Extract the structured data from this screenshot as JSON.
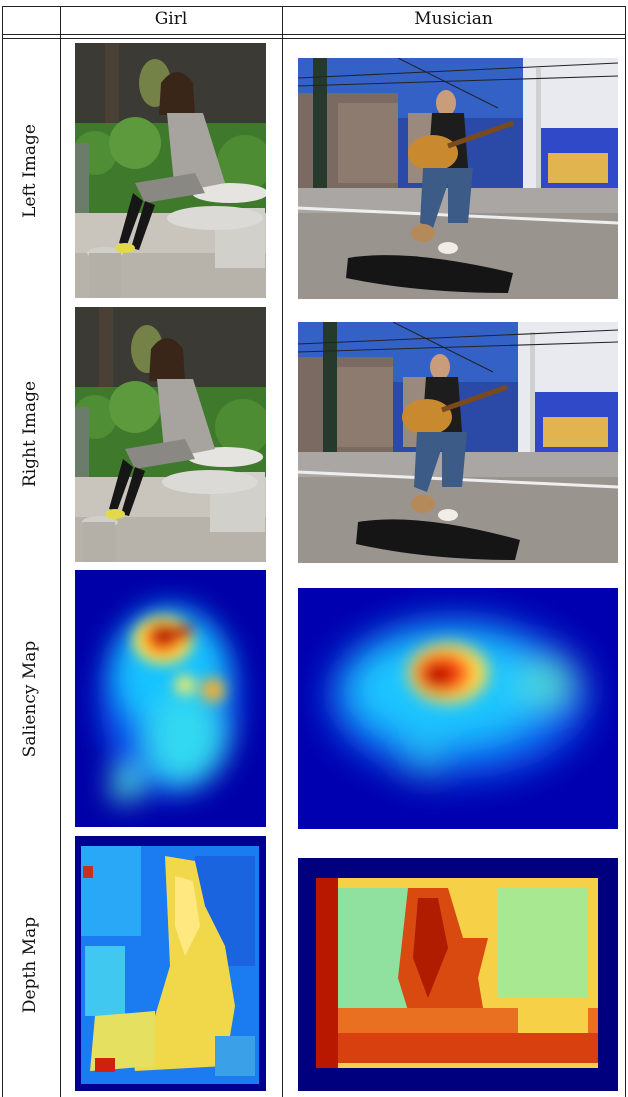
{
  "header": {
    "col1": "Girl",
    "col2": "Musician"
  },
  "rows": [
    {
      "label": "Left Image"
    },
    {
      "label": "Right Image"
    },
    {
      "label": "Saliency Map"
    },
    {
      "label": "Depth Map"
    }
  ]
}
